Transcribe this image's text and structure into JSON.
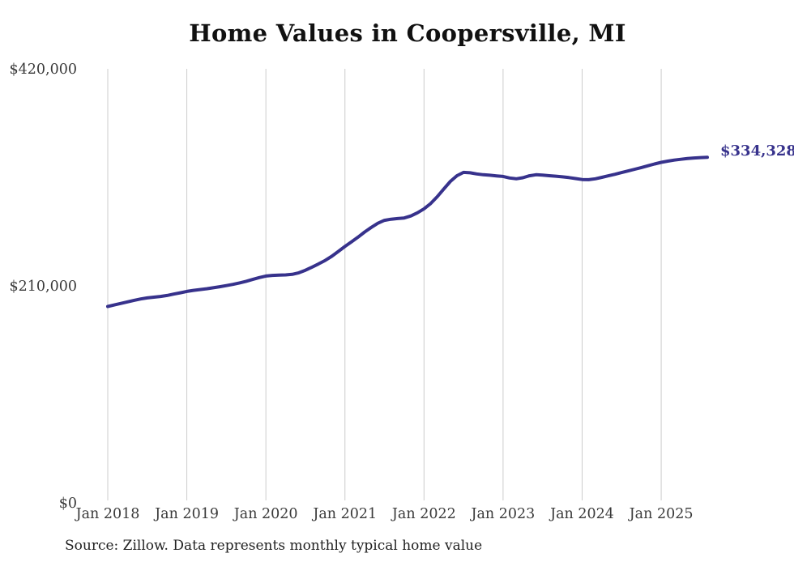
{
  "chart_data": {
    "type": "line",
    "title": "Home Values in Coopersville, MI",
    "series_name": "Monthly typical home value",
    "x_start": "Jan 2018",
    "x_end": "Aug 2025",
    "x_interval": "monthly",
    "x_tick_labels": [
      "Jan 2018",
      "Jan 2019",
      "Jan 2020",
      "Jan 2021",
      "Jan 2022",
      "Jan 2023",
      "Jan 2024",
      "Jan 2025"
    ],
    "y_ticks": [
      {
        "label": "$0",
        "value": 0
      },
      {
        "label": "$210,000",
        "value": 210000
      },
      {
        "label": "$420,000",
        "value": 420000
      }
    ],
    "ylim": [
      0,
      420000
    ],
    "grid": "vertical-only",
    "legend": "none",
    "values": [
      190000,
      191500,
      193000,
      194500,
      196000,
      197300,
      198300,
      199000,
      199700,
      200700,
      202000,
      203300,
      204600,
      205600,
      206400,
      207200,
      208100,
      209100,
      210200,
      211400,
      212800,
      214400,
      216200,
      218000,
      219500,
      220100,
      220400,
      220600,
      221100,
      222600,
      225100,
      228100,
      231200,
      234600,
      238600,
      243300,
      248100,
      252600,
      257200,
      262100,
      266600,
      270600,
      273400,
      274500,
      275100,
      275700,
      277600,
      280700,
      284500,
      289600,
      296200,
      303700,
      311100,
      316600,
      319800,
      319400,
      318300,
      317500,
      317000,
      316400,
      315900,
      314400,
      313600,
      314600,
      316500,
      317500,
      317100,
      316600,
      316100,
      315500,
      314800,
      313800,
      312900,
      312700,
      313600,
      315000,
      316500,
      318000,
      319600,
      321200,
      322800,
      324500,
      326200,
      327900,
      329500,
      330700,
      331700,
      332500,
      333200,
      333700,
      334100,
      334328
    ],
    "end_value": 334328,
    "end_value_label": "$334,328",
    "colors": {
      "line": "#37328c",
      "end_label": "#37328c",
      "grid": "#cccccc",
      "tick_label": "#3a3a3a",
      "title": "#111111",
      "source": "#222222"
    }
  },
  "footer": {
    "source_note": "Source: Zillow. Data represents monthly typical home value"
  }
}
